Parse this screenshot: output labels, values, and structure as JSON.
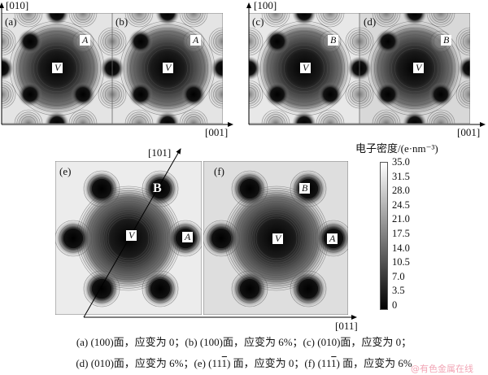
{
  "top_left": {
    "y_axis_label": "[010]",
    "x_axis_label": "[001]",
    "panels": [
      {
        "tag": "(a)",
        "center_label": "V",
        "site_label": "A"
      },
      {
        "tag": "(b)",
        "center_label": "V",
        "site_label": "A"
      }
    ]
  },
  "top_right": {
    "y_axis_label": "[100]",
    "x_axis_label": "[001]",
    "panels": [
      {
        "tag": "(c)",
        "center_label": "V",
        "site_label": "B"
      },
      {
        "tag": "(d)",
        "center_label": "V",
        "site_label": "B"
      }
    ]
  },
  "bottom": {
    "diag_axis_label": "[101]",
    "x_axis_label": "[011]",
    "panels": [
      {
        "tag": "(e)",
        "center_label": "V",
        "site_a": "A",
        "site_b": "B"
      },
      {
        "tag": "(f)",
        "center_label": "V",
        "site_a": "A",
        "site_b": "B"
      }
    ]
  },
  "colorbar": {
    "title": "电子密度/(e·nm⁻³)",
    "ticks": [
      "35.0",
      "31.5",
      "28.0",
      "24.5",
      "21.0",
      "17.5",
      "14.0",
      "10.5",
      "7.0",
      "3.5",
      "0"
    ],
    "range": [
      0,
      35.0
    ],
    "colors": {
      "min": "#000000",
      "max": "#ffffff"
    }
  },
  "caption": {
    "line1": "(a) (100)面，应变为 0；(b) (100)面，应变为 6%；(c) (010)面，应变为 0；",
    "line2_pre": "(d) (010)面，应变为 6%；(e)  (11",
    "line2_bar1": "1",
    "line2_mid": ") 面，应变为 0；(f)  (11",
    "line2_bar2": "1",
    "line2_post": ") 面，应变为 6%"
  },
  "watermark": "@有色金属在线"
}
